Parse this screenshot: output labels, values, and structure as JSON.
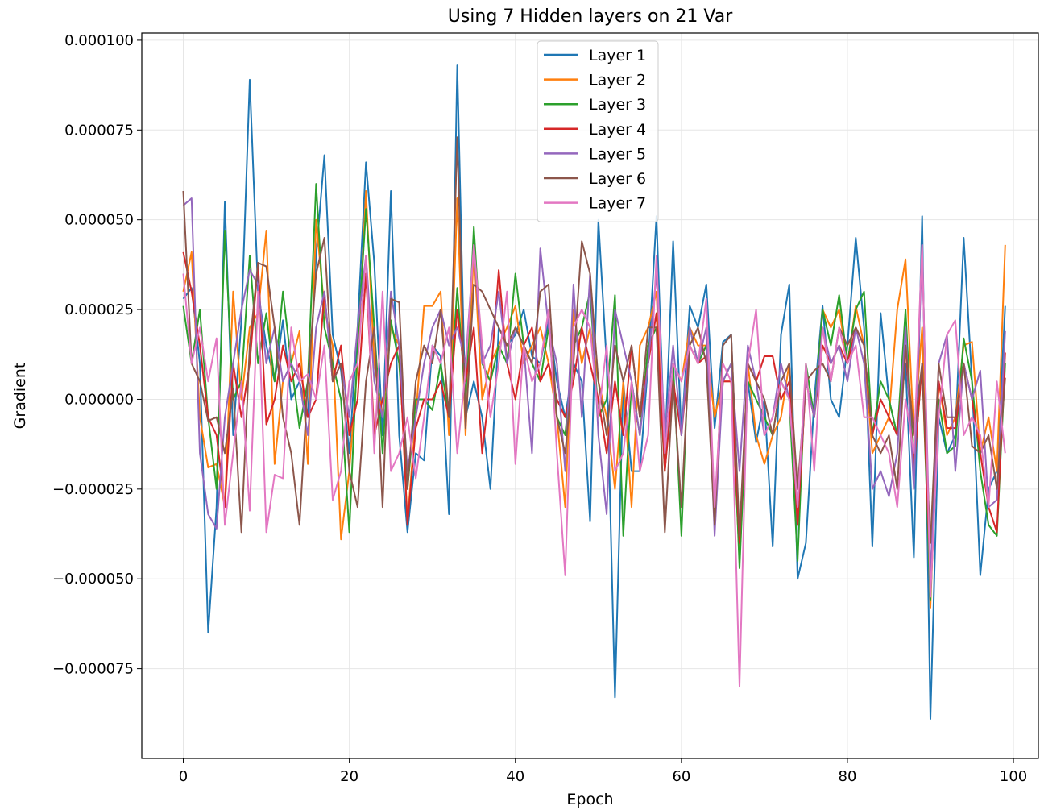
{
  "chart_data": {
    "type": "line",
    "title": "Using 7 Hidden layers on 21 Var",
    "xlabel": "Epoch",
    "ylabel": "Gradient",
    "xlim": [
      -5,
      103
    ],
    "ylim": [
      -0.0001,
      0.000102
    ],
    "xticks": [
      0,
      20,
      40,
      60,
      80,
      100
    ],
    "xtick_labels": [
      "0",
      "20",
      "40",
      "60",
      "80",
      "100"
    ],
    "yticks": [
      -7.5e-05,
      -5e-05,
      -2.5e-05,
      0,
      2.5e-05,
      5e-05,
      7.5e-05,
      0.0001
    ],
    "ytick_labels": [
      "−0.000075",
      "−0.000050",
      "−0.000025",
      "0.000000",
      "0.000025",
      "0.000050",
      "0.000075",
      "0.000100"
    ],
    "grid": true,
    "legend_position": "top-center",
    "x_start": 0,
    "series": [
      {
        "name": "Layer 1",
        "color": "#1f77b4",
        "values": [
          2.8e-05,
          3.1e-05,
          1e-05,
          -6.5e-05,
          -3e-05,
          5.5e-05,
          -1e-05,
          2.2e-05,
          8.9e-05,
          3e-05,
          1.5e-05,
          5e-06,
          2.2e-05,
          0.0,
          5e-06,
          -5e-06,
          4e-05,
          6.8e-05,
          1.8e-05,
          8e-06,
          -1.5e-05,
          2e-05,
          6.6e-05,
          3.8e-05,
          -1e-05,
          5.8e-05,
          -1e-05,
          -3.7e-05,
          -1.5e-05,
          -1.7e-05,
          1.5e-05,
          1.2e-05,
          -3.2e-05,
          9.3e-05,
          -5e-06,
          5e-06,
          -5e-06,
          -2.5e-05,
          2e-05,
          1.5e-05,
          1.8e-05,
          2.5e-05,
          1.2e-05,
          1e-05,
          2.2e-05,
          5e-06,
          -5e-06,
          1e-05,
          5e-06,
          -3.4e-05,
          5e-05,
          1e-05,
          -8.3e-05,
          5e-06,
          -2e-05,
          -2e-05,
          1e-05,
          5.1e-05,
          -1.5e-05,
          4.4e-05,
          -1e-05,
          2.6e-05,
          2e-05,
          3.2e-05,
          -8e-06,
          1.6e-05,
          1.8e-05,
          -4e-05,
          5e-06,
          -1.2e-05,
          0.0,
          -4.1e-05,
          1.8e-05,
          3.2e-05,
          -5e-05,
          -4e-05,
          0.0,
          2.6e-05,
          0.0,
          -5e-06,
          1.5e-05,
          4.5e-05,
          2e-05,
          -4.1e-05,
          2.4e-05,
          0.0,
          -1e-05,
          1e-05,
          -4.4e-05,
          5.1e-05,
          -8.9e-05,
          -5e-06,
          -1.5e-05,
          -1e-05,
          4.5e-05,
          5e-06,
          -4.9e-05,
          -2.5e-05,
          -2e-05,
          2.6e-05
        ]
      },
      {
        "name": "Layer 2",
        "color": "#ff7f0e",
        "values": [
          3e-05,
          4.1e-05,
          -5e-06,
          -1.9e-05,
          -1.8e-05,
          -3e-05,
          3e-05,
          0.0,
          2e-05,
          2.4e-05,
          4.7e-05,
          -1.8e-05,
          5e-06,
          1e-05,
          1.9e-05,
          -1.8e-05,
          5e-05,
          2.5e-05,
          1.5e-05,
          -3.9e-05,
          -2e-05,
          1e-05,
          5.8e-05,
          1e-05,
          -5e-06,
          2e-05,
          1.5e-05,
          -3.4e-05,
          -5e-06,
          2.6e-05,
          2.6e-05,
          3e-05,
          -1e-05,
          5.6e-05,
          -1e-05,
          4.2e-05,
          0.0,
          1e-05,
          1.5e-05,
          2e-05,
          2.6e-05,
          1e-05,
          1.5e-05,
          2e-05,
          1e-05,
          -5e-06,
          -3e-05,
          2.5e-05,
          1e-05,
          2e-05,
          5e-06,
          -5e-06,
          -2.5e-05,
          5e-06,
          -3e-05,
          1.5e-05,
          2e-05,
          3e-05,
          -2e-05,
          1e-05,
          5e-06,
          2e-05,
          1.5e-05,
          1.5e-05,
          -5e-06,
          5e-06,
          5e-06,
          -4.5e-05,
          1e-05,
          -1e-05,
          -1.8e-05,
          -1e-05,
          -5e-06,
          1e-05,
          -3.5e-05,
          5e-06,
          -5e-06,
          2.5e-05,
          2e-05,
          2.5e-05,
          1e-05,
          2.6e-05,
          1.5e-05,
          -1.5e-05,
          -1e-05,
          -5e-06,
          2.5e-05,
          3.9e-05,
          -1e-05,
          2e-05,
          -5.8e-05,
          5e-06,
          -1e-05,
          -5e-06,
          1.5e-05,
          1.6e-05,
          -1.5e-05,
          -5e-06,
          -2e-05,
          4.3e-05
        ]
      },
      {
        "name": "Layer 3",
        "color": "#2ca02c",
        "values": [
          2.6e-05,
          1e-05,
          2.5e-05,
          -5e-06,
          -2.5e-05,
          4.7e-05,
          0.0,
          5e-06,
          4e-05,
          1e-05,
          2.4e-05,
          5e-06,
          3e-05,
          1e-05,
          -8e-06,
          5e-06,
          6e-05,
          2e-05,
          1e-05,
          0.0,
          -3.7e-05,
          1.5e-05,
          5.3e-05,
          2e-05,
          -1.5e-05,
          2.2e-05,
          1e-05,
          -2.5e-05,
          0.0,
          0.0,
          -3e-06,
          1e-05,
          -5e-06,
          3.1e-05,
          0.0,
          4.8e-05,
          1e-05,
          5e-06,
          1.5e-05,
          1e-05,
          3.5e-05,
          1.5e-05,
          1e-05,
          5e-06,
          2e-05,
          -5e-06,
          -1e-05,
          1.5e-05,
          2e-05,
          3e-05,
          -5e-06,
          0.0,
          2.9e-05,
          -3.8e-05,
          5e-06,
          -1e-05,
          1.5e-05,
          2e-05,
          -2e-05,
          1e-05,
          -3.8e-05,
          2e-05,
          1e-05,
          1.5e-05,
          -3e-05,
          5e-06,
          1e-05,
          -4.7e-05,
          5e-06,
          0.0,
          -5e-06,
          -1e-05,
          5e-06,
          0.0,
          -4.5e-05,
          1e-05,
          -5e-06,
          2.5e-05,
          1.5e-05,
          2.9e-05,
          1e-05,
          2.5e-05,
          3e-05,
          -1e-05,
          5e-06,
          0.0,
          -1e-05,
          2.5e-05,
          -2e-05,
          1e-05,
          -5.6e-05,
          0.0,
          -1.5e-05,
          -1.3e-05,
          1.7e-05,
          5e-06,
          -2e-05,
          -3.5e-05,
          -3.8e-05,
          1e-05
        ]
      },
      {
        "name": "Layer 4",
        "color": "#d62728",
        "values": [
          4.1e-05,
          3e-05,
          1.5e-05,
          -5e-06,
          -1e-05,
          -3e-05,
          1e-05,
          -5e-06,
          1e-05,
          3.8e-05,
          -7e-06,
          0.0,
          1.5e-05,
          5e-06,
          1e-05,
          -5e-06,
          0.0,
          3e-05,
          5e-06,
          1.5e-05,
          -1e-05,
          0.0,
          3.5e-05,
          -1e-05,
          0.0,
          1e-05,
          1.5e-05,
          -3.5e-05,
          -8e-06,
          0.0,
          0.0,
          5e-06,
          -5e-06,
          2.5e-05,
          5e-06,
          2e-05,
          -1.5e-05,
          5e-06,
          3.6e-05,
          1e-05,
          0.0,
          1.5e-05,
          2e-05,
          5e-06,
          1e-05,
          0.0,
          -5e-06,
          5e-06,
          2e-05,
          1e-05,
          0.0,
          -1.5e-05,
          5e-06,
          -1e-05,
          1.5e-05,
          -5e-06,
          1e-05,
          2.4e-05,
          -2e-05,
          5e-06,
          -1e-05,
          1.5e-05,
          1e-05,
          1.2e-05,
          -3e-05,
          5e-06,
          5e-06,
          -4e-05,
          1e-05,
          5e-06,
          1.2e-05,
          1.2e-05,
          0.0,
          5e-06,
          -3.5e-05,
          5e-06,
          -5e-06,
          1.5e-05,
          1e-05,
          1.5e-05,
          1e-05,
          2e-05,
          1.5e-05,
          -1e-05,
          0.0,
          -5e-06,
          -1e-05,
          1.5e-05,
          -2e-05,
          1e-05,
          -5e-05,
          5e-06,
          -8e-06,
          -8e-06,
          1e-05,
          0.0,
          -1.5e-05,
          -3e-05,
          -3.7e-05,
          1.3e-05
        ]
      },
      {
        "name": "Layer 5",
        "color": "#9467bd",
        "values": [
          5.4e-05,
          5.6e-05,
          -1.5e-05,
          -3.2e-05,
          -3.6e-05,
          -5e-06,
          1e-05,
          2.5e-05,
          3.6e-05,
          3.2e-05,
          1e-05,
          2e-05,
          5e-06,
          1e-05,
          5e-06,
          -1e-05,
          2e-05,
          3e-05,
          5e-06,
          1e-05,
          -5e-06,
          2e-05,
          4e-05,
          5e-06,
          -5e-06,
          3e-05,
          1.5e-05,
          -2e-05,
          -5e-06,
          1e-05,
          2e-05,
          2.5e-05,
          1.5e-05,
          2e-05,
          1e-05,
          4.3e-05,
          1e-05,
          1.5e-05,
          3e-05,
          1e-05,
          2e-05,
          1.5e-05,
          -1.5e-05,
          4.2e-05,
          2e-05,
          1e-05,
          -2e-05,
          3.2e-05,
          -5e-06,
          3.5e-05,
          -1e-05,
          -3.2e-05,
          2.5e-05,
          1.5e-05,
          5e-06,
          -1e-05,
          1e-05,
          3.5e-05,
          -1e-05,
          1.5e-05,
          -1e-05,
          2e-05,
          1e-05,
          2e-05,
          -3.8e-05,
          5e-06,
          1e-05,
          -2e-05,
          1.5e-05,
          5e-06,
          -1e-05,
          -5e-06,
          1e-05,
          0.0,
          -3e-05,
          5e-06,
          -5e-06,
          2e-05,
          1e-05,
          1.5e-05,
          5e-06,
          2e-05,
          1e-05,
          -2.5e-05,
          -2e-05,
          -2.7e-05,
          -1.5e-05,
          2e-05,
          -2.5e-05,
          4.2e-05,
          -5e-05,
          1e-05,
          1.8e-05,
          -2e-05,
          1e-05,
          0.0,
          8e-06,
          -3e-05,
          -2.8e-05,
          1.9e-05
        ]
      },
      {
        "name": "Layer 6",
        "color": "#8c564b",
        "values": [
          5.8e-05,
          1e-05,
          5e-06,
          -6e-06,
          -5e-06,
          -1.5e-05,
          3e-06,
          -3.7e-05,
          1.5e-05,
          3.8e-05,
          3.7e-05,
          2e-05,
          -5e-06,
          -1.5e-05,
          -3.5e-05,
          5e-06,
          3.5e-05,
          4.5e-05,
          5e-06,
          1e-05,
          -2e-05,
          -3e-05,
          5e-06,
          2e-05,
          -3e-05,
          2.8e-05,
          2.7e-05,
          -2.5e-05,
          5e-06,
          1.5e-05,
          1e-05,
          2.5e-05,
          -5e-06,
          7.3e-05,
          -8e-06,
          3.2e-05,
          3e-05,
          2.5e-05,
          2e-05,
          1.5e-05,
          2e-05,
          1.5e-05,
          1e-05,
          3e-05,
          3.2e-05,
          -5e-06,
          -1.5e-05,
          1e-05,
          4.4e-05,
          3.5e-05,
          5e-06,
          -1e-05,
          1.5e-05,
          5e-06,
          1.5e-05,
          -5e-06,
          2e-05,
          2e-05,
          -3.7e-05,
          5e-06,
          -3e-05,
          1.5e-05,
          2e-05,
          1e-05,
          -3.5e-05,
          1.5e-05,
          1.8e-05,
          -3.8e-05,
          1e-05,
          5e-06,
          0.0,
          -1e-05,
          5e-06,
          1e-05,
          -2.5e-05,
          5e-06,
          8e-06,
          1e-05,
          5e-06,
          2e-05,
          1.5e-05,
          2e-05,
          1.5e-05,
          -1e-05,
          -1.5e-05,
          -1e-05,
          -2.5e-05,
          1.5e-05,
          -1e-05,
          1e-05,
          -4e-05,
          1e-05,
          -5e-06,
          -5e-06,
          1e-05,
          -1.3e-05,
          -1.5e-05,
          -1e-05,
          -2.5e-05,
          6e-06
        ]
      },
      {
        "name": "Layer 7",
        "color": "#e377c2",
        "values": [
          3.5e-05,
          1e-05,
          2e-05,
          5e-06,
          1.7e-05,
          -3.5e-05,
          -1.5e-05,
          5e-06,
          -3.1e-05,
          3e-05,
          -3.7e-05,
          -2.1e-05,
          -2.2e-05,
          2e-05,
          5e-06,
          7e-06,
          0.0,
          1.5e-05,
          -2.8e-05,
          -2e-05,
          5e-06,
          1e-05,
          4e-05,
          -1.5e-05,
          3e-05,
          -2e-05,
          -1.5e-05,
          -5e-06,
          -2.2e-05,
          -5e-06,
          1.5e-05,
          1e-05,
          2e-05,
          -1.5e-05,
          8e-06,
          4.3e-05,
          1.5e-05,
          -5e-06,
          1e-05,
          3e-05,
          -1.8e-05,
          1.5e-05,
          5e-06,
          1e-05,
          2.5e-05,
          -1.5e-05,
          -4.9e-05,
          2e-05,
          2.5e-05,
          2e-05,
          -5e-06,
          1.5e-05,
          -2e-05,
          -1.5e-05,
          5e-06,
          -2e-05,
          -1e-05,
          4e-05,
          -1.5e-05,
          1e-05,
          5e-06,
          1.5e-05,
          1e-05,
          2.8e-05,
          -3e-05,
          1e-05,
          5e-06,
          -8e-05,
          1e-05,
          2.5e-05,
          -1e-05,
          -5e-06,
          5e-06,
          0.0,
          -3e-05,
          1e-05,
          -2e-05,
          2e-05,
          5e-06,
          2e-05,
          1e-05,
          1.5e-05,
          -5e-06,
          -5e-06,
          -1e-05,
          -1.5e-05,
          -3e-05,
          0.0,
          -1.5e-05,
          4.3e-05,
          -5.5e-05,
          -5e-06,
          1.8e-05,
          2.2e-05,
          -1e-05,
          -5e-06,
          -1e-05,
          -3e-05,
          5e-06,
          -1.5e-05
        ]
      }
    ]
  }
}
